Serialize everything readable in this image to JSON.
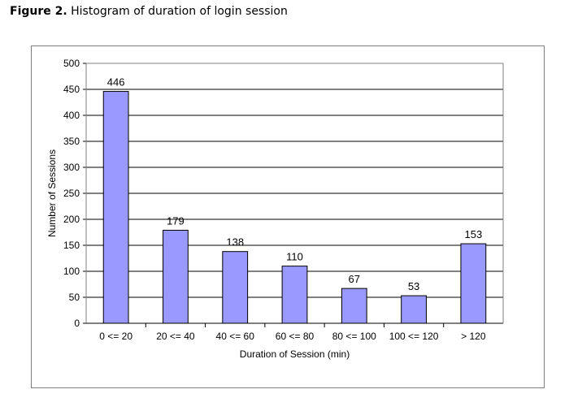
{
  "caption": {
    "prefix": "Figure 2.",
    "text": "Histogram of duration of login session"
  },
  "colors": {
    "bar_fill": "#9999ff",
    "bar_stroke": "#000000",
    "gridline": "#000000",
    "plot_background": "#ffffff"
  },
  "chart_data": {
    "type": "bar",
    "categories": [
      "0 <= 20",
      "20 <= 40",
      "40 <= 60",
      "60 <= 80",
      "80 <= 100",
      "100 <= 120",
      "> 120"
    ],
    "values": [
      446,
      179,
      138,
      110,
      67,
      53,
      153
    ],
    "xlabel": "Duration of Session (min)",
    "ylabel": "Number of Sessions",
    "ylim": [
      0,
      500
    ],
    "yticks": [
      0,
      50,
      100,
      150,
      200,
      250,
      300,
      350,
      400,
      450,
      500
    ],
    "grid": true,
    "legend": "none"
  }
}
